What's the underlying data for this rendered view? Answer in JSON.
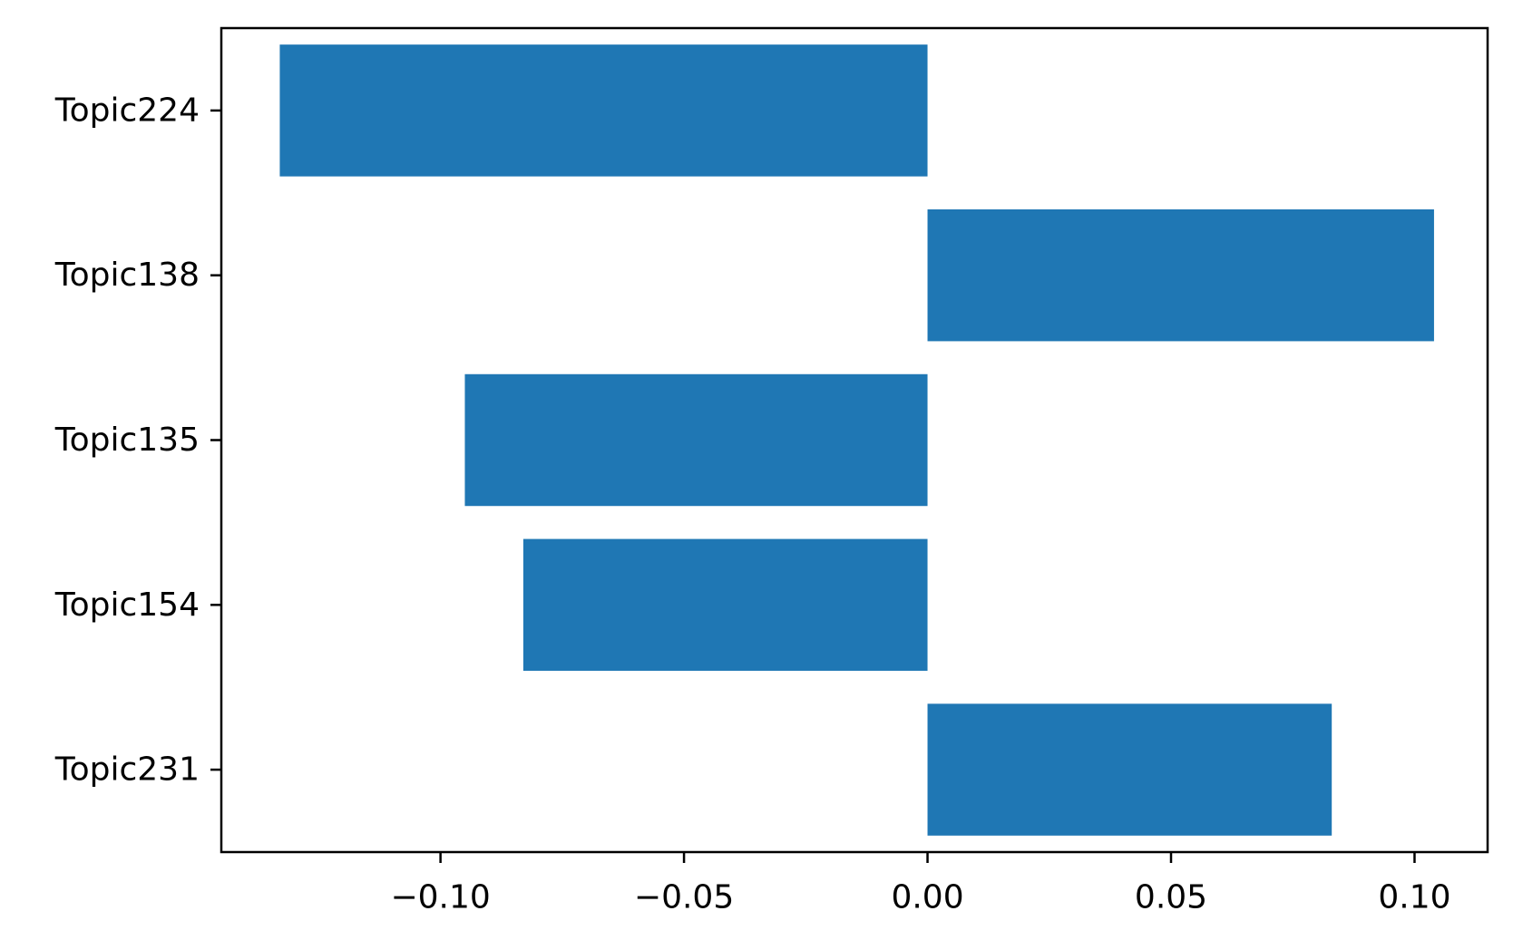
{
  "chart_data": {
    "type": "bar",
    "orientation": "horizontal",
    "title": "",
    "xlabel": "",
    "ylabel": "",
    "categories": [
      "Topic224",
      "Topic138",
      "Topic135",
      "Topic154",
      "Topic231"
    ],
    "values": [
      -0.133,
      0.104,
      -0.095,
      -0.083,
      0.083
    ],
    "xlim": [
      -0.145,
      0.115
    ],
    "xticks": [
      -0.1,
      -0.05,
      0.0,
      0.05,
      0.1
    ],
    "xtick_labels": [
      "−0.10",
      "−0.05",
      "0.00",
      "0.05",
      "0.10"
    ],
    "grid": false,
    "bar_color": "#1f77b4"
  }
}
